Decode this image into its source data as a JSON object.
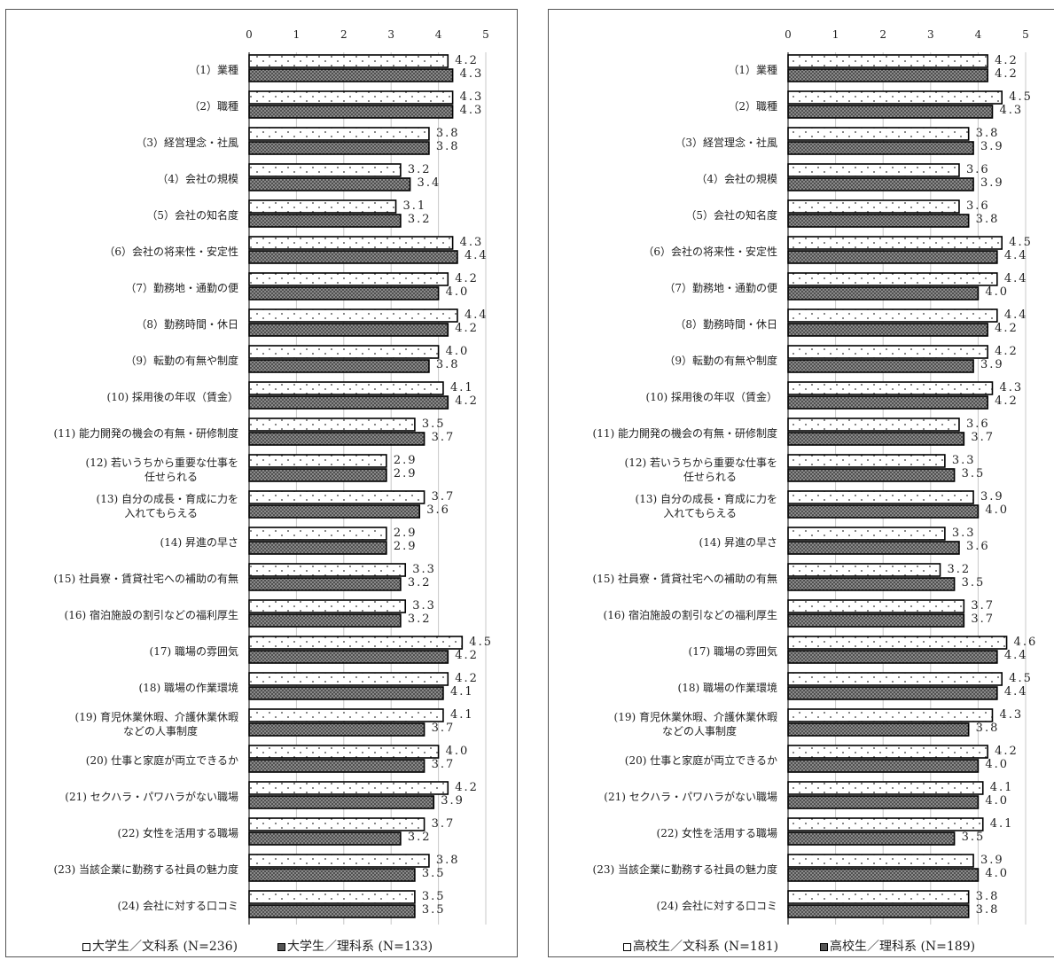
{
  "chart_data": [
    {
      "type": "bar",
      "orientation": "horizontal",
      "xlim": [
        0,
        5
      ],
      "xticks": [
        "0",
        "1",
        "2",
        "3",
        "4",
        "5"
      ],
      "grid": true,
      "legend_position": "bottom",
      "categories": [
        [
          "（1）業種"
        ],
        [
          "（2）職種"
        ],
        [
          "（3）経営理念・社風"
        ],
        [
          "（4）会社の規模"
        ],
        [
          "（5）会社の知名度"
        ],
        [
          "（6）会社の将来性・安定性"
        ],
        [
          "（7）勤務地・通勤の便"
        ],
        [
          "（8）勤務時間・休日"
        ],
        [
          "（9）転勤の有無や制度"
        ],
        [
          "(10) 採用後の年収（賃金）"
        ],
        [
          "(11) 能力開発の機会の有無・研修制度"
        ],
        [
          "(12) 若いうちから重要な仕事を",
          "任せられる"
        ],
        [
          "(13) 自分の成長・育成に力を",
          "入れてもらえる"
        ],
        [
          "(14) 昇進の早さ"
        ],
        [
          "(15) 社員寮・賃貸社宅への補助の有無"
        ],
        [
          "(16) 宿泊施設の割引などの福利厚生"
        ],
        [
          "(17) 職場の雰囲気"
        ],
        [
          "(18) 職場の作業環境"
        ],
        [
          "(19) 育児休業休暇、介護休業休暇",
          "などの人事制度"
        ],
        [
          "(20) 仕事と家庭が両立できるか"
        ],
        [
          "(21) セクハラ・パワハラがない職場"
        ],
        [
          "(22) 女性を活用する職場"
        ],
        [
          "(23) 当該企業に勤務する社員の魅力度"
        ],
        [
          "(24) 会社に対する口コミ"
        ]
      ],
      "series": [
        {
          "name": "大学生／文科系 (N=236)",
          "fill": "#ffffff",
          "pattern": "dots",
          "values": [
            4.2,
            4.3,
            3.8,
            3.2,
            3.1,
            4.3,
            4.2,
            4.4,
            4.0,
            4.1,
            3.5,
            2.9,
            3.7,
            2.9,
            3.3,
            3.3,
            4.5,
            4.2,
            4.1,
            4.0,
            4.2,
            3.7,
            3.8,
            3.5
          ]
        },
        {
          "name": "大学生／理科系 (N=133)",
          "fill": "#5a5a5a",
          "pattern": "crosshatch",
          "values": [
            4.3,
            4.3,
            3.8,
            3.4,
            3.2,
            4.4,
            4.0,
            4.2,
            3.8,
            4.2,
            3.7,
            2.9,
            3.6,
            2.9,
            3.2,
            3.2,
            4.2,
            4.1,
            3.7,
            3.7,
            3.9,
            3.2,
            3.5,
            3.5
          ]
        }
      ]
    },
    {
      "type": "bar",
      "orientation": "horizontal",
      "xlim": [
        0,
        5
      ],
      "xticks": [
        "0",
        "1",
        "2",
        "3",
        "4",
        "5"
      ],
      "grid": true,
      "legend_position": "bottom",
      "categories": [
        [
          "（1）業種"
        ],
        [
          "（2）職種"
        ],
        [
          "（3）経営理念・社風"
        ],
        [
          "（4）会社の規模"
        ],
        [
          "（5）会社の知名度"
        ],
        [
          "（6）会社の将来性・安定性"
        ],
        [
          "（7）勤務地・通勤の便"
        ],
        [
          "（8）勤務時間・休日"
        ],
        [
          "（9）転勤の有無や制度"
        ],
        [
          "(10) 採用後の年収（賃金）"
        ],
        [
          "(11) 能力開発の機会の有無・研修制度"
        ],
        [
          "(12) 若いうちから重要な仕事を",
          "任せられる"
        ],
        [
          "(13) 自分の成長・育成に力を",
          "入れてもらえる"
        ],
        [
          "(14) 昇進の早さ"
        ],
        [
          "(15) 社員寮・賃貸社宅への補助の有無"
        ],
        [
          "(16) 宿泊施設の割引などの福利厚生"
        ],
        [
          "(17) 職場の雰囲気"
        ],
        [
          "(18) 職場の作業環境"
        ],
        [
          "(19) 育児休業休暇、介護休業休暇",
          "などの人事制度"
        ],
        [
          "(20) 仕事と家庭が両立できるか"
        ],
        [
          "(21) セクハラ・パワハラがない職場"
        ],
        [
          "(22) 女性を活用する職場"
        ],
        [
          "(23) 当該企業に勤務する社員の魅力度"
        ],
        [
          "(24) 会社に対する口コミ"
        ]
      ],
      "series": [
        {
          "name": "高校生／文科系 (N=181)",
          "fill": "#ffffff",
          "pattern": "dots",
          "values": [
            4.2,
            4.5,
            3.8,
            3.6,
            3.6,
            4.5,
            4.4,
            4.4,
            4.2,
            4.3,
            3.6,
            3.3,
            3.9,
            3.3,
            3.2,
            3.7,
            4.6,
            4.5,
            4.3,
            4.2,
            4.1,
            4.1,
            3.9,
            3.8
          ]
        },
        {
          "name": "高校生／理科系 (N=189)",
          "fill": "#5a5a5a",
          "pattern": "crosshatch",
          "values": [
            4.2,
            4.3,
            3.9,
            3.9,
            3.8,
            4.4,
            4.0,
            4.2,
            3.9,
            4.2,
            3.7,
            3.5,
            4.0,
            3.6,
            3.5,
            3.7,
            4.4,
            4.4,
            3.8,
            4.0,
            4.0,
            3.5,
            4.0,
            3.8
          ]
        }
      ]
    }
  ]
}
